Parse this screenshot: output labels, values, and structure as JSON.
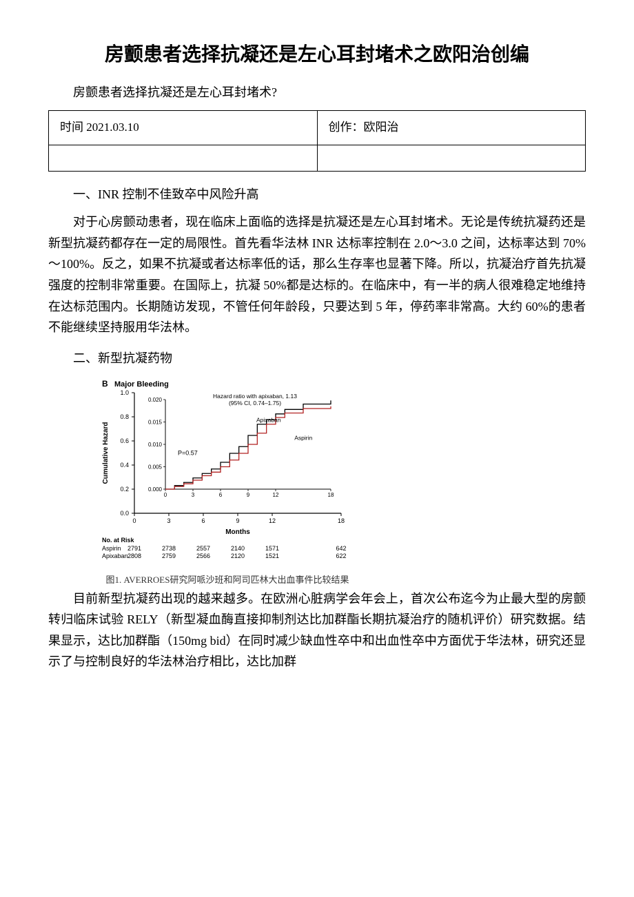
{
  "title": "房颤患者选择抗凝还是左心耳封堵术之欧阳治创编",
  "subtitle": "房颤患者选择抗凝还是左心耳封堵术?",
  "info_table": {
    "rows": [
      [
        "时间 2021.03.10",
        "创作：欧阳治"
      ],
      [
        "",
        ""
      ]
    ]
  },
  "section1_heading": "一、INR 控制不佳致卒中风险升高",
  "para1": "对于心房颤动患者，现在临床上面临的选择是抗凝还是左心耳封堵术。无论是传统抗凝药还是新型抗凝药都存在一定的局限性。首先看华法林 INR 达标率控制在 2.0～3.0 之间，达标率达到 70%～100%。反之，如果不抗凝或者达标率低的话，那么生存率也显著下降。所以，抗凝治疗首先抗凝强度的控制非常重要。在国际上，抗凝 50%都是达标的。在临床中，有一半的病人很难稳定地维持在达标范围内。长期随访发现，不管任何年龄段，只要达到 5 年，停药率非常高。大约 60%的患者不能继续坚持服用华法林。",
  "section2_heading": "二、新型抗凝药物",
  "chart": {
    "type": "line",
    "panel_label": "B",
    "panel_title": "Major Bleeding",
    "hazard_ratio_text": "Hazard ratio with apixaban, 1.13",
    "ci_text": "(95% CI, 0.74–1.75)",
    "ylabel": "Cumulative Hazard",
    "xlabel": "Months",
    "outer_ylim": [
      0,
      1.0
    ],
    "outer_yticks": [
      0,
      0.2,
      0.4,
      0.6,
      0.8,
      1.0
    ],
    "inset_ylim": [
      0,
      0.02
    ],
    "inset_yticks": [
      0.0,
      0.005,
      0.01,
      0.015,
      0.02
    ],
    "xlim": [
      0,
      18
    ],
    "xticks": [
      0,
      3,
      6,
      9,
      12,
      18
    ],
    "p_value": "P=0.57",
    "series": {
      "Apixaban": {
        "color": "#000000",
        "label_pos": "upper",
        "points": [
          [
            0,
            0
          ],
          [
            1,
            0.0008
          ],
          [
            2,
            0.0015
          ],
          [
            3,
            0.0025
          ],
          [
            4,
            0.0035
          ],
          [
            5,
            0.0045
          ],
          [
            6,
            0.006
          ],
          [
            7,
            0.008
          ],
          [
            8,
            0.0095
          ],
          [
            9,
            0.012
          ],
          [
            10,
            0.0145
          ],
          [
            11,
            0.0155
          ],
          [
            12,
            0.0168
          ],
          [
            13,
            0.0178
          ],
          [
            15,
            0.019
          ],
          [
            18,
            0.0198
          ]
        ]
      },
      "Aspirin": {
        "color": "#b22222",
        "label_pos": "lower",
        "points": [
          [
            0,
            0
          ],
          [
            1,
            0.0006
          ],
          [
            2,
            0.0012
          ],
          [
            3,
            0.002
          ],
          [
            4,
            0.003
          ],
          [
            5,
            0.0038
          ],
          [
            6,
            0.005
          ],
          [
            7,
            0.0065
          ],
          [
            8,
            0.008
          ],
          [
            9,
            0.01
          ],
          [
            10,
            0.0125
          ],
          [
            11,
            0.0145
          ],
          [
            12,
            0.016
          ],
          [
            13,
            0.017
          ],
          [
            15,
            0.018
          ],
          [
            18,
            0.0185
          ]
        ]
      }
    },
    "risk_table": {
      "header": "No. at Risk",
      "rows": [
        {
          "label": "Aspirin",
          "values": [
            2791,
            2738,
            2557,
            2140,
            1571,
            642
          ]
        },
        {
          "label": "Apixaban",
          "values": [
            2808,
            2759,
            2566,
            2120,
            1521,
            622
          ]
        }
      ]
    },
    "caption": "图1. AVERROES研究阿哌沙班和阿司匹林大出血事件比较结果",
    "background_color": "#ffffff",
    "axis_color": "#000000",
    "font_family": "Arial",
    "label_fontsize": 10,
    "tick_fontsize": 9
  },
  "para2": "目前新型抗凝药出现的越来越多。在欧洲心脏病学会年会上，首次公布迄今为止最大型的房颤转归临床试验 RELY（新型凝血酶直接抑制剂达比加群酯长期抗凝治疗的随机评价）研究数据。结果显示，达比加群酯（150mg bid）在同时减少缺血性卒中和出血性卒中方面优于华法林，研究还显示了与控制良好的华法林治疗相比，达比加群"
}
